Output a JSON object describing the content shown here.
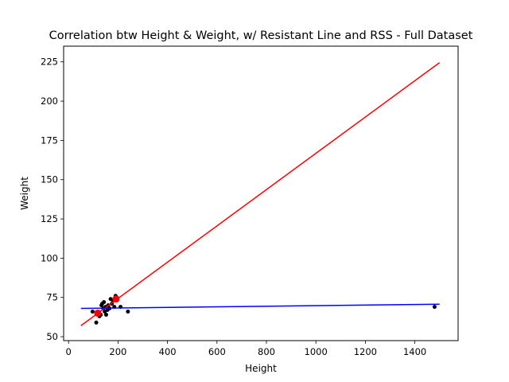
{
  "chart_data": {
    "type": "scatter",
    "title": "Correlation btw Height & Weight, w/ Resistant Line and RSS - Full Dataset",
    "xlabel": "Height",
    "ylabel": "Weight",
    "xlim": [
      -20,
      1575
    ],
    "ylim": [
      47.5,
      235
    ],
    "xticks": [
      0,
      200,
      400,
      600,
      800,
      1000,
      1200,
      1400
    ],
    "yticks": [
      50,
      75,
      100,
      125,
      150,
      175,
      200,
      225
    ],
    "grid": false,
    "series": [
      {
        "kind": "points",
        "color": "#000000",
        "points": [
          [
            97,
            66
          ],
          [
            112,
            59
          ],
          [
            118,
            65
          ],
          [
            125,
            63
          ],
          [
            130,
            64
          ],
          [
            133,
            70
          ],
          [
            136,
            71
          ],
          [
            140,
            68
          ],
          [
            143,
            72
          ],
          [
            146,
            66
          ],
          [
            150,
            69
          ],
          [
            152,
            64
          ],
          [
            157,
            67
          ],
          [
            160,
            70
          ],
          [
            165,
            68
          ],
          [
            170,
            74
          ],
          [
            175,
            71
          ],
          [
            180,
            73
          ],
          [
            185,
            69
          ],
          [
            190,
            76
          ],
          [
            195,
            75
          ],
          [
            210,
            69
          ],
          [
            240,
            66
          ],
          [
            1480,
            69
          ]
        ]
      },
      {
        "kind": "line",
        "color": "#ff0000",
        "points": [
          [
            50,
            57
          ],
          [
            1500,
            224.5
          ]
        ]
      },
      {
        "kind": "line",
        "color": "#0000ff",
        "points": [
          [
            50,
            68
          ],
          [
            1500,
            70.7
          ]
        ]
      },
      {
        "kind": "points",
        "color": "#ff0000",
        "points": [
          [
            118,
            65
          ],
          [
            192,
            74
          ]
        ]
      }
    ]
  }
}
